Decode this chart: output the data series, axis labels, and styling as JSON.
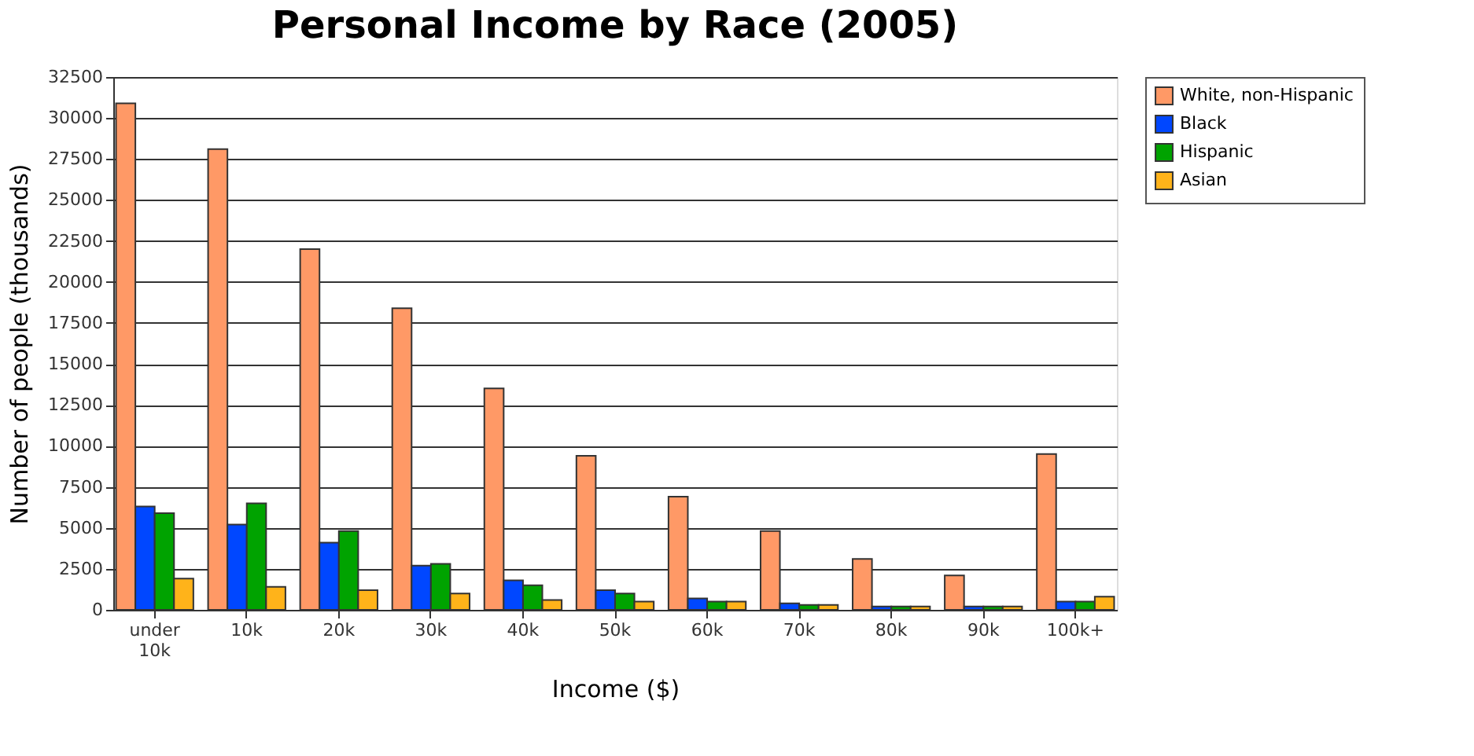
{
  "chart_data": {
    "type": "bar",
    "title": "Personal Income by Race (2005)",
    "xlabel": "Income ($)",
    "ylabel": "Number of people (thousands)",
    "categories": [
      "under 10k",
      "10k",
      "20k",
      "30k",
      "40k",
      "50k",
      "60k",
      "70k",
      "80k",
      "90k",
      "100k+"
    ],
    "series": [
      {
        "name": "White, non-Hispanic",
        "color": "#ff9966",
        "values": [
          30900,
          28100,
          22000,
          18400,
          13500,
          9400,
          6900,
          4800,
          3100,
          2100,
          9500
        ]
      },
      {
        "name": "Black",
        "color": "#0047ff",
        "values": [
          6300,
          5200,
          4100,
          2700,
          1800,
          1200,
          700,
          400,
          200,
          200,
          500
        ]
      },
      {
        "name": "Hispanic",
        "color": "#00a300",
        "values": [
          5900,
          6500,
          4800,
          2800,
          1500,
          1000,
          500,
          300,
          200,
          200,
          500
        ]
      },
      {
        "name": "Asian",
        "color": "#ffb31a",
        "values": [
          1900,
          1400,
          1200,
          1000,
          600,
          500,
          500,
          300,
          200,
          200,
          800
        ]
      }
    ],
    "ylim": [
      0,
      32500
    ],
    "yticks": [
      0,
      2500,
      5000,
      7500,
      10000,
      12500,
      15000,
      17500,
      20000,
      22500,
      25000,
      27500,
      30000,
      32500
    ],
    "grid": "y",
    "legend": "right"
  }
}
